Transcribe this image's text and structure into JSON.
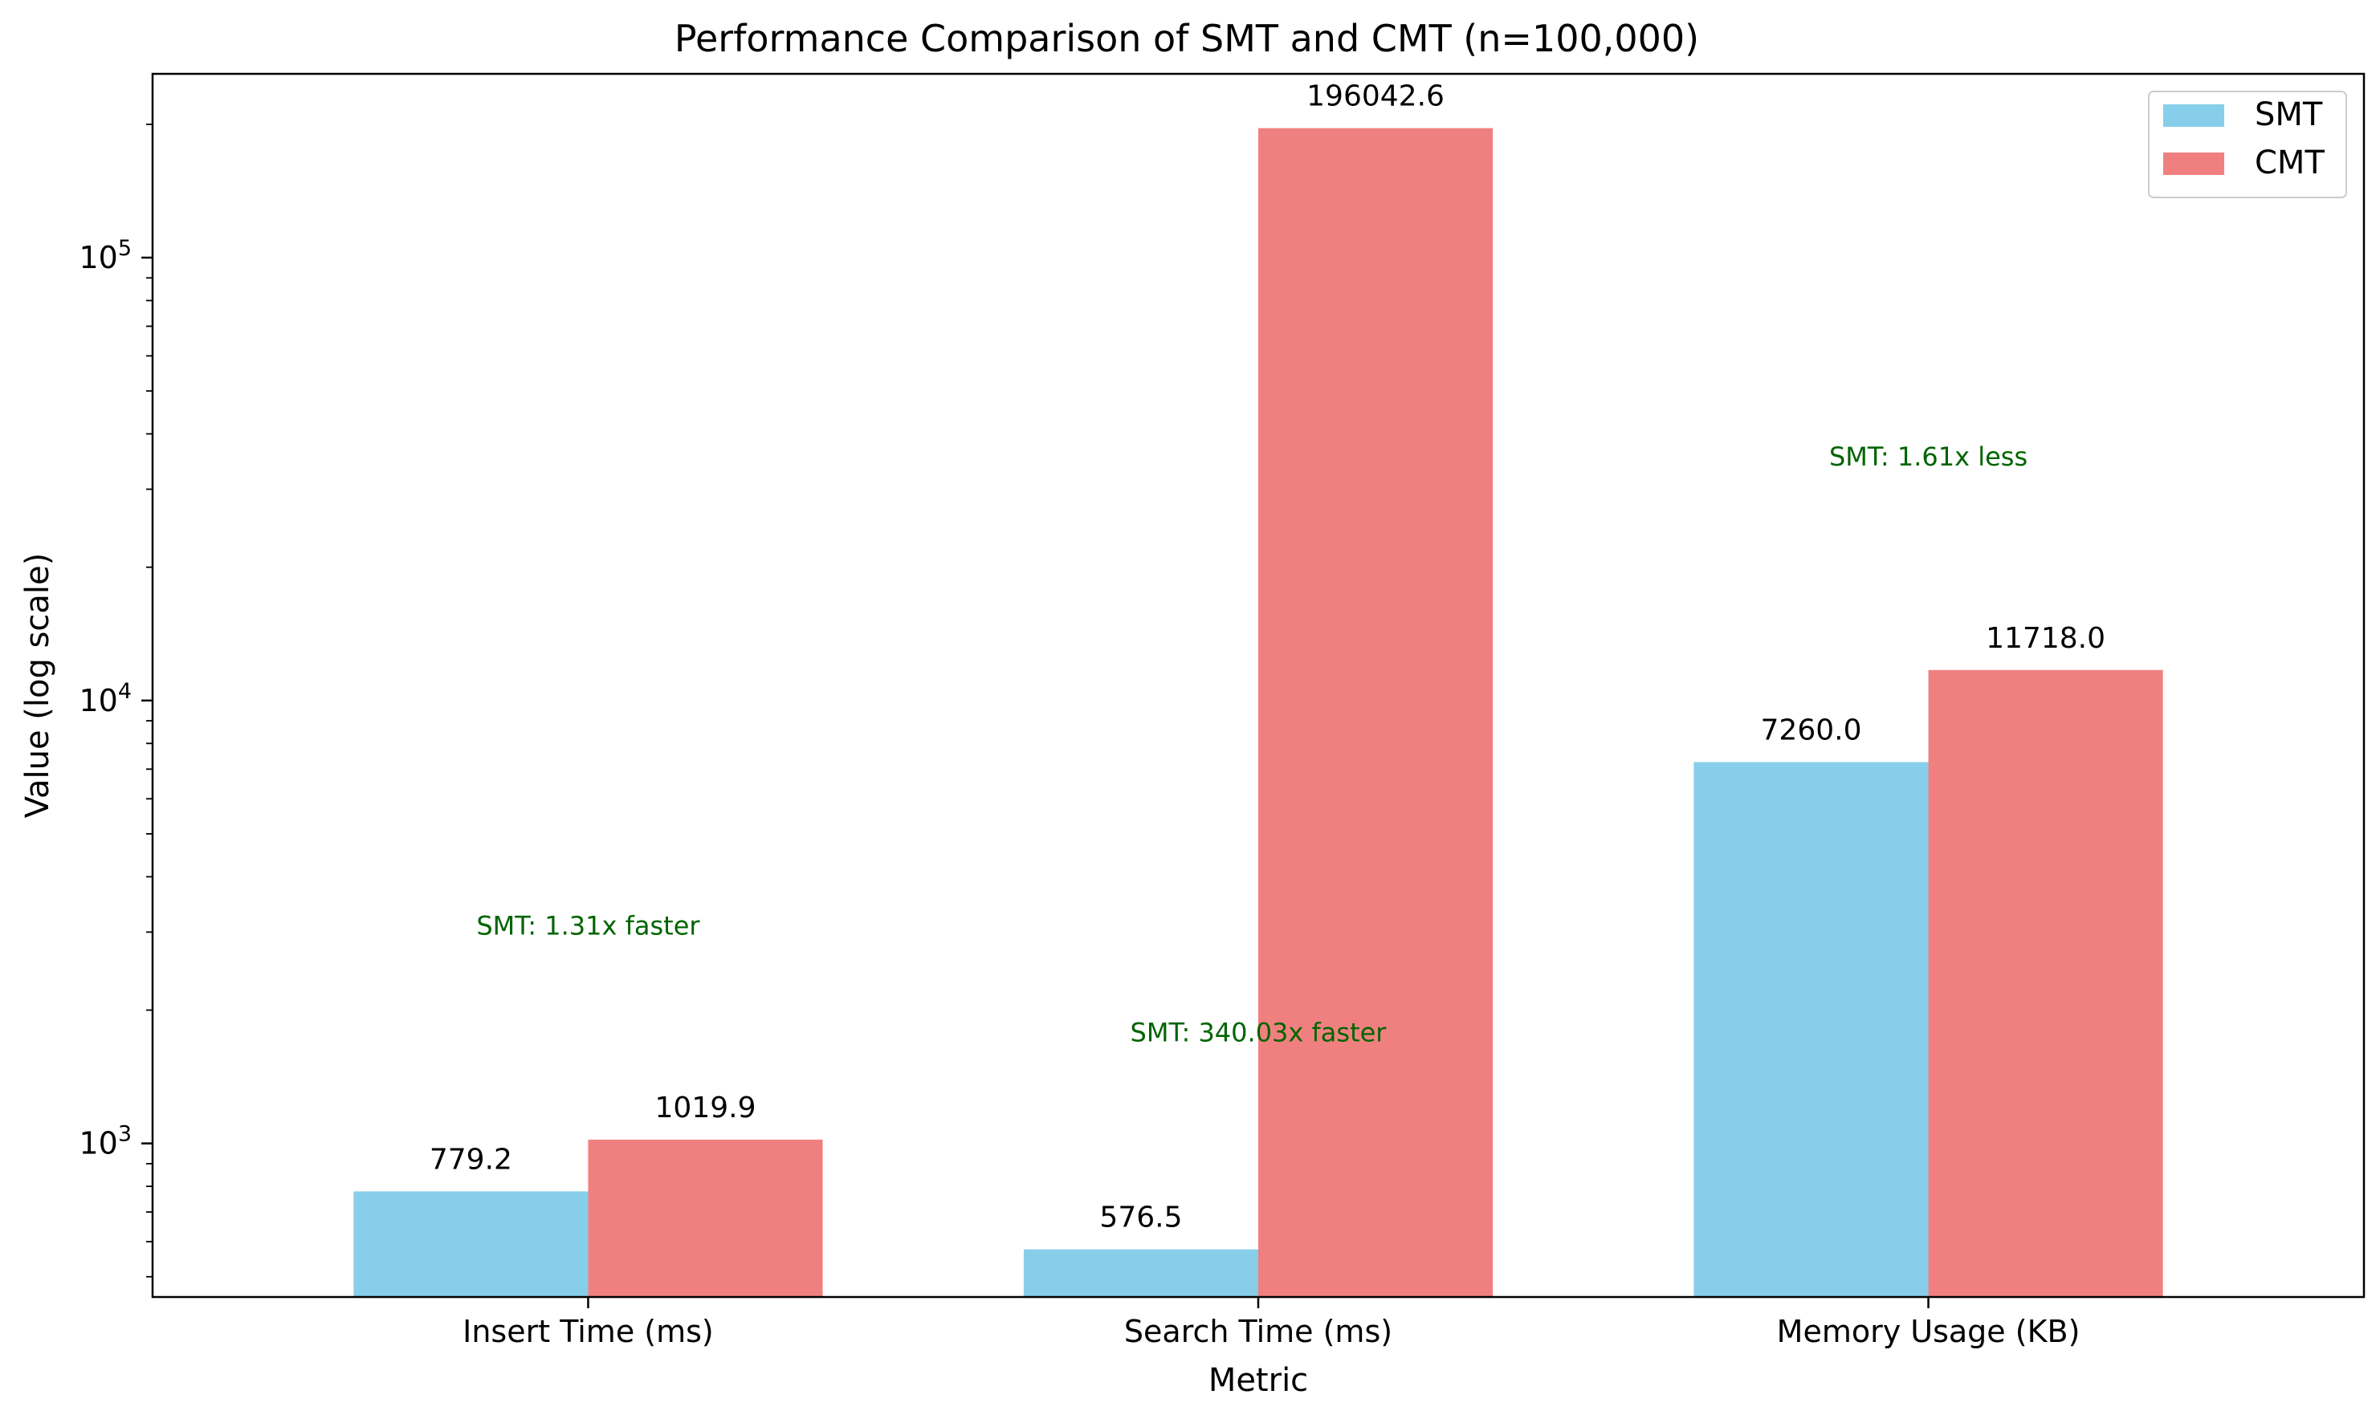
{
  "chart_data": {
    "type": "bar",
    "title": "Performance Comparison of SMT and CMT (n=100,000)",
    "xlabel": "Metric",
    "ylabel": "Value (log scale)",
    "yscale": "log",
    "ylim": [
      450,
      260000
    ],
    "categories": [
      "Insert Time (ms)",
      "Search Time (ms)",
      "Memory Usage (KB)"
    ],
    "series": [
      {
        "name": "SMT",
        "color": "#87ceeb",
        "values": [
          779.2,
          576.5,
          7260.0
        ],
        "labels": [
          "779.2",
          "576.5",
          "7260.0"
        ]
      },
      {
        "name": "CMT",
        "color": "#f08080",
        "values": [
          1019.9,
          196042.6,
          11718.0
        ],
        "labels": [
          "1019.9",
          "196042.6",
          "11718.0"
        ]
      }
    ],
    "annotations": [
      {
        "category": "Insert Time (ms)",
        "text": "SMT: 1.31x faster",
        "value": 3100
      },
      {
        "category": "Search Time (ms)",
        "text": "SMT: 340.03x faster",
        "value": 1780
      },
      {
        "category": "Memory Usage (KB)",
        "text": "SMT: 1.61x less",
        "value": 35500
      }
    ],
    "annotation_color": "#006400",
    "yticks_major": [
      {
        "value": 1000,
        "base": "10",
        "exp": "3"
      },
      {
        "value": 10000,
        "base": "10",
        "exp": "4"
      },
      {
        "value": 100000,
        "base": "10",
        "exp": "5"
      }
    ],
    "legend": {
      "position": "top-right",
      "entries": [
        "SMT",
        "CMT"
      ]
    },
    "grid": false
  }
}
